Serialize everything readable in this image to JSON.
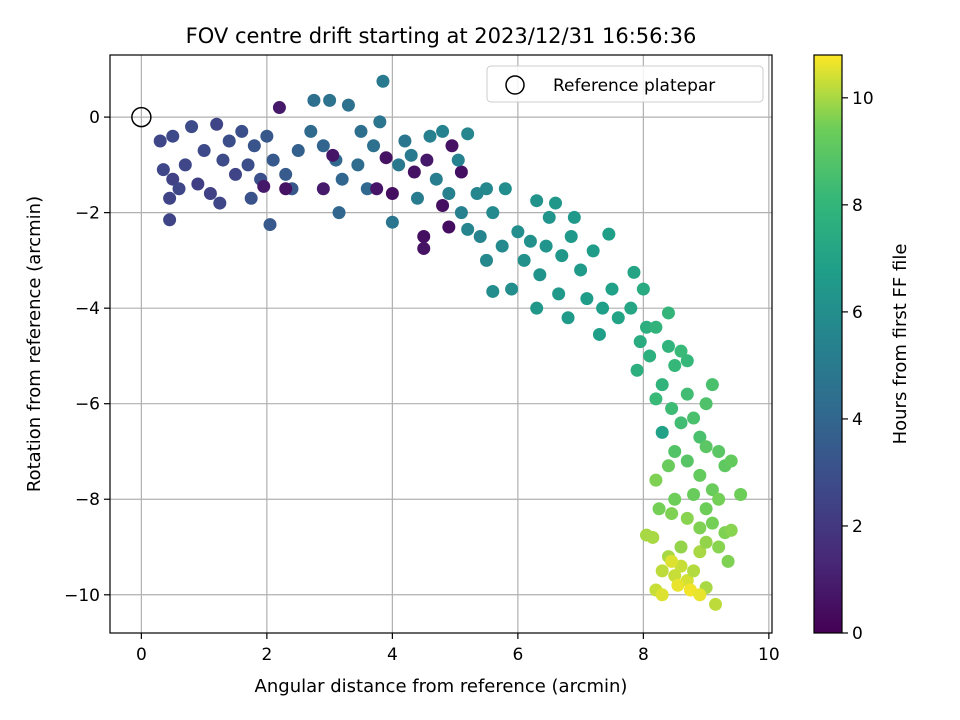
{
  "chart_data": {
    "type": "scatter",
    "title": "FOV centre drift starting at 2023/12/31 16:56:36",
    "xlabel": "Angular distance from reference (arcmin)",
    "ylabel": "Rotation from reference (arcmin)",
    "xlim": [
      -0.5,
      10.05
    ],
    "ylim": [
      -10.8,
      1.3
    ],
    "xticks": [
      0,
      2,
      4,
      6,
      8,
      10
    ],
    "yticks": [
      0,
      -2,
      -4,
      -6,
      -8,
      -10
    ],
    "xtick_labels": [
      "0",
      "2",
      "4",
      "6",
      "8",
      "10"
    ],
    "ytick_labels": [
      "0",
      "−2",
      "−4",
      "−6",
      "−8",
      "−10"
    ],
    "grid": true,
    "colormap": "viridis",
    "colorbar": {
      "label": "Hours from first FF file",
      "range": [
        0,
        10.8
      ],
      "ticks": [
        0,
        2,
        4,
        6,
        8,
        10
      ],
      "tick_labels": [
        "0",
        "2",
        "4",
        "6",
        "8",
        "10"
      ]
    },
    "legend": {
      "placement": "top-right",
      "entries": [
        {
          "label": "Reference platepar",
          "marker": "open-circle"
        }
      ]
    },
    "reference_point": {
      "x": 0,
      "y": 0
    },
    "series": [
      {
        "color_by": "hours",
        "points": [
          {
            "x": 0.3,
            "y": -0.5,
            "c": 2.6
          },
          {
            "x": 0.5,
            "y": -0.4,
            "c": 2.7
          },
          {
            "x": 0.8,
            "y": -0.2,
            "c": 2.8
          },
          {
            "x": 1.2,
            "y": -0.15,
            "c": 2.5
          },
          {
            "x": 0.35,
            "y": -1.1,
            "c": 2.6
          },
          {
            "x": 0.5,
            "y": -1.3,
            "c": 2.4
          },
          {
            "x": 0.7,
            "y": -1.0,
            "c": 2.6
          },
          {
            "x": 0.9,
            "y": -1.4,
            "c": 2.3
          },
          {
            "x": 0.45,
            "y": -1.7,
            "c": 2.5
          },
          {
            "x": 0.6,
            "y": -1.5,
            "c": 2.6
          },
          {
            "x": 1.0,
            "y": -0.7,
            "c": 2.7
          },
          {
            "x": 1.1,
            "y": -1.6,
            "c": 2.4
          },
          {
            "x": 1.3,
            "y": -0.9,
            "c": 2.8
          },
          {
            "x": 1.5,
            "y": -1.2,
            "c": 2.5
          },
          {
            "x": 0.45,
            "y": -2.15,
            "c": 2.5
          },
          {
            "x": 1.25,
            "y": -1.8,
            "c": 2.6
          },
          {
            "x": 1.4,
            "y": -0.5,
            "c": 2.9
          },
          {
            "x": 1.6,
            "y": -0.3,
            "c": 3.0
          },
          {
            "x": 1.8,
            "y": -0.6,
            "c": 3.2
          },
          {
            "x": 2.0,
            "y": -0.4,
            "c": 3.3
          },
          {
            "x": 1.7,
            "y": -1.0,
            "c": 2.9
          },
          {
            "x": 1.9,
            "y": -1.3,
            "c": 3.0
          },
          {
            "x": 2.1,
            "y": -0.9,
            "c": 3.4
          },
          {
            "x": 2.3,
            "y": -1.2,
            "c": 3.5
          },
          {
            "x": 2.2,
            "y": 0.2,
            "c": 0.8
          },
          {
            "x": 2.05,
            "y": -2.25,
            "c": 3.4
          },
          {
            "x": 1.75,
            "y": -1.7,
            "c": 3.1
          },
          {
            "x": 2.4,
            "y": -1.5,
            "c": 3.3
          },
          {
            "x": 2.5,
            "y": -0.7,
            "c": 3.7
          },
          {
            "x": 2.7,
            "y": -0.3,
            "c": 4.2
          },
          {
            "x": 2.75,
            "y": 0.35,
            "c": 4.4
          },
          {
            "x": 2.9,
            "y": -0.6,
            "c": 3.9
          },
          {
            "x": 3.0,
            "y": 0.35,
            "c": 4.6
          },
          {
            "x": 3.1,
            "y": -0.9,
            "c": 4.1
          },
          {
            "x": 3.3,
            "y": 0.25,
            "c": 4.5
          },
          {
            "x": 3.5,
            "y": -0.3,
            "c": 4.4
          },
          {
            "x": 3.2,
            "y": -1.3,
            "c": 4.0
          },
          {
            "x": 3.45,
            "y": -1.0,
            "c": 4.3
          },
          {
            "x": 3.7,
            "y": -0.6,
            "c": 4.5
          },
          {
            "x": 3.85,
            "y": 0.75,
            "c": 5.0
          },
          {
            "x": 3.8,
            "y": -0.1,
            "c": 4.7
          },
          {
            "x": 3.6,
            "y": -1.5,
            "c": 4.1
          },
          {
            "x": 3.15,
            "y": -2.0,
            "c": 4.0
          },
          {
            "x": 2.9,
            "y": -1.5,
            "c": 0.9
          },
          {
            "x": 2.3,
            "y": -1.5,
            "c": 0.6
          },
          {
            "x": 1.95,
            "y": -1.45,
            "c": 0.8
          },
          {
            "x": 3.05,
            "y": -0.8,
            "c": 0.7
          },
          {
            "x": 3.9,
            "y": -0.85,
            "c": 0.6
          },
          {
            "x": 4.0,
            "y": -1.6,
            "c": 0.5
          },
          {
            "x": 3.75,
            "y": -1.5,
            "c": 0.7
          },
          {
            "x": 4.35,
            "y": -1.15,
            "c": 0.6
          },
          {
            "x": 4.55,
            "y": -0.9,
            "c": 0.8
          },
          {
            "x": 4.5,
            "y": -2.5,
            "c": 0.5
          },
          {
            "x": 4.5,
            "y": -2.75,
            "c": 0.6
          },
          {
            "x": 4.9,
            "y": -2.3,
            "c": 0.4
          },
          {
            "x": 4.8,
            "y": -1.85,
            "c": 0.5
          },
          {
            "x": 4.95,
            "y": -0.6,
            "c": 0.6
          },
          {
            "x": 5.1,
            "y": -1.15,
            "c": 0.5
          },
          {
            "x": 4.0,
            "y": -2.2,
            "c": 4.8
          },
          {
            "x": 4.1,
            "y": -1.0,
            "c": 4.9
          },
          {
            "x": 4.2,
            "y": -0.5,
            "c": 4.8
          },
          {
            "x": 4.3,
            "y": -0.8,
            "c": 5.0
          },
          {
            "x": 4.4,
            "y": -1.7,
            "c": 5.1
          },
          {
            "x": 4.6,
            "y": -0.4,
            "c": 5.3
          },
          {
            "x": 4.7,
            "y": -1.3,
            "c": 5.2
          },
          {
            "x": 4.8,
            "y": -0.3,
            "c": 5.4
          },
          {
            "x": 4.9,
            "y": -1.6,
            "c": 5.3
          },
          {
            "x": 5.05,
            "y": -0.9,
            "c": 5.4
          },
          {
            "x": 5.2,
            "y": -0.35,
            "c": 5.6
          },
          {
            "x": 5.1,
            "y": -2.0,
            "c": 5.3
          },
          {
            "x": 5.2,
            "y": -2.35,
            "c": 5.5
          },
          {
            "x": 5.35,
            "y": -1.6,
            "c": 5.6
          },
          {
            "x": 5.4,
            "y": -2.5,
            "c": 5.5
          },
          {
            "x": 5.5,
            "y": -1.5,
            "c": 5.7
          },
          {
            "x": 5.6,
            "y": -2.0,
            "c": 5.8
          },
          {
            "x": 5.5,
            "y": -3.0,
            "c": 5.7
          },
          {
            "x": 5.6,
            "y": -3.65,
            "c": 5.9
          },
          {
            "x": 5.75,
            "y": -2.7,
            "c": 5.8
          },
          {
            "x": 5.8,
            "y": -1.5,
            "c": 5.9
          },
          {
            "x": 5.9,
            "y": -3.6,
            "c": 6.0
          },
          {
            "x": 6.0,
            "y": -2.4,
            "c": 6.0
          },
          {
            "x": 6.1,
            "y": -3.0,
            "c": 6.1
          },
          {
            "x": 6.2,
            "y": -2.6,
            "c": 6.1
          },
          {
            "x": 6.3,
            "y": -1.75,
            "c": 6.2
          },
          {
            "x": 6.35,
            "y": -3.3,
            "c": 6.2
          },
          {
            "x": 6.5,
            "y": -2.1,
            "c": 6.3
          },
          {
            "x": 6.6,
            "y": -1.8,
            "c": 6.4
          },
          {
            "x": 6.45,
            "y": -2.7,
            "c": 6.3
          },
          {
            "x": 6.7,
            "y": -2.9,
            "c": 6.4
          },
          {
            "x": 6.3,
            "y": -4.0,
            "c": 6.4
          },
          {
            "x": 6.65,
            "y": -3.7,
            "c": 6.5
          },
          {
            "x": 6.85,
            "y": -2.5,
            "c": 6.5
          },
          {
            "x": 6.9,
            "y": -2.1,
            "c": 6.5
          },
          {
            "x": 7.0,
            "y": -3.2,
            "c": 6.6
          },
          {
            "x": 6.8,
            "y": -4.2,
            "c": 6.6
          },
          {
            "x": 7.1,
            "y": -3.8,
            "c": 6.7
          },
          {
            "x": 7.2,
            "y": -2.8,
            "c": 6.7
          },
          {
            "x": 7.35,
            "y": -4.0,
            "c": 6.8
          },
          {
            "x": 7.3,
            "y": -4.55,
            "c": 6.8
          },
          {
            "x": 7.5,
            "y": -3.6,
            "c": 6.9
          },
          {
            "x": 7.45,
            "y": -2.45,
            "c": 6.8
          },
          {
            "x": 7.6,
            "y": -4.2,
            "c": 7.0
          },
          {
            "x": 7.8,
            "y": -4.0,
            "c": 7.2
          },
          {
            "x": 7.85,
            "y": -3.25,
            "c": 7.1
          },
          {
            "x": 8.0,
            "y": -3.6,
            "c": 7.4
          },
          {
            "x": 7.95,
            "y": -4.7,
            "c": 7.5
          },
          {
            "x": 8.05,
            "y": -4.4,
            "c": 7.6
          },
          {
            "x": 7.9,
            "y": -5.3,
            "c": 7.6
          },
          {
            "x": 8.1,
            "y": -5.0,
            "c": 7.7
          },
          {
            "x": 8.2,
            "y": -4.4,
            "c": 7.9
          },
          {
            "x": 8.4,
            "y": -4.8,
            "c": 7.9
          },
          {
            "x": 8.4,
            "y": -4.1,
            "c": 8.0
          },
          {
            "x": 8.3,
            "y": -5.6,
            "c": 7.9
          },
          {
            "x": 8.5,
            "y": -5.2,
            "c": 8.1
          },
          {
            "x": 8.6,
            "y": -4.9,
            "c": 8.2
          },
          {
            "x": 8.7,
            "y": -5.1,
            "c": 8.1
          },
          {
            "x": 8.2,
            "y": -5.9,
            "c": 8.2
          },
          {
            "x": 8.45,
            "y": -6.1,
            "c": 8.3
          },
          {
            "x": 8.7,
            "y": -5.8,
            "c": 8.4
          },
          {
            "x": 8.6,
            "y": -6.4,
            "c": 8.4
          },
          {
            "x": 8.8,
            "y": -6.3,
            "c": 8.6
          },
          {
            "x": 9.1,
            "y": -5.6,
            "c": 8.6
          },
          {
            "x": 9.0,
            "y": -6.0,
            "c": 8.7
          },
          {
            "x": 8.9,
            "y": -6.7,
            "c": 8.6
          },
          {
            "x": 8.3,
            "y": -6.6,
            "c": 6.9
          },
          {
            "x": 8.5,
            "y": -7.0,
            "c": 8.8
          },
          {
            "x": 8.7,
            "y": -7.2,
            "c": 8.9
          },
          {
            "x": 9.0,
            "y": -6.9,
            "c": 9.0
          },
          {
            "x": 9.2,
            "y": -7.0,
            "c": 9.0
          },
          {
            "x": 8.9,
            "y": -7.5,
            "c": 9.2
          },
          {
            "x": 9.1,
            "y": -7.8,
            "c": 9.3
          },
          {
            "x": 9.3,
            "y": -7.3,
            "c": 9.1
          },
          {
            "x": 9.4,
            "y": -7.2,
            "c": 9.2
          },
          {
            "x": 8.8,
            "y": -7.9,
            "c": 9.3
          },
          {
            "x": 9.0,
            "y": -8.2,
            "c": 9.4
          },
          {
            "x": 9.2,
            "y": -8.0,
            "c": 9.5
          },
          {
            "x": 9.55,
            "y": -7.9,
            "c": 9.4
          },
          {
            "x": 8.4,
            "y": -7.3,
            "c": 9.3
          },
          {
            "x": 8.2,
            "y": -7.6,
            "c": 9.6
          },
          {
            "x": 8.5,
            "y": -8.0,
            "c": 9.4
          },
          {
            "x": 8.7,
            "y": -8.4,
            "c": 9.7
          },
          {
            "x": 8.45,
            "y": -8.3,
            "c": 9.6
          },
          {
            "x": 8.25,
            "y": -8.2,
            "c": 9.5
          },
          {
            "x": 8.9,
            "y": -8.6,
            "c": 9.6
          },
          {
            "x": 9.1,
            "y": -8.5,
            "c": 9.5
          },
          {
            "x": 9.3,
            "y": -8.7,
            "c": 9.6
          },
          {
            "x": 9.4,
            "y": -8.65,
            "c": 9.7
          },
          {
            "x": 8.6,
            "y": -9.0,
            "c": 9.8
          },
          {
            "x": 8.4,
            "y": -9.2,
            "c": 10.0
          },
          {
            "x": 8.3,
            "y": -9.5,
            "c": 10.2
          },
          {
            "x": 8.5,
            "y": -9.6,
            "c": 10.3
          },
          {
            "x": 8.7,
            "y": -9.7,
            "c": 10.4
          },
          {
            "x": 8.6,
            "y": -9.4,
            "c": 10.3
          },
          {
            "x": 8.8,
            "y": -9.5,
            "c": 10.1
          },
          {
            "x": 8.9,
            "y": -9.1,
            "c": 10.0
          },
          {
            "x": 9.0,
            "y": -8.9,
            "c": 9.8
          },
          {
            "x": 9.2,
            "y": -9.0,
            "c": 9.7
          },
          {
            "x": 9.35,
            "y": -9.3,
            "c": 9.6
          },
          {
            "x": 9.0,
            "y": -9.85,
            "c": 10.0
          },
          {
            "x": 8.2,
            "y": -9.9,
            "c": 10.3
          },
          {
            "x": 8.3,
            "y": -10.0,
            "c": 10.5
          },
          {
            "x": 8.55,
            "y": -9.8,
            "c": 10.6
          },
          {
            "x": 8.75,
            "y": -9.9,
            "c": 10.7
          },
          {
            "x": 9.15,
            "y": -10.2,
            "c": 10.2
          },
          {
            "x": 8.15,
            "y": -8.8,
            "c": 10.0
          },
          {
            "x": 8.05,
            "y": -8.75,
            "c": 10.0
          },
          {
            "x": 8.9,
            "y": -10.0,
            "c": 10.6
          },
          {
            "x": 8.45,
            "y": -9.3,
            "c": 10.5
          }
        ]
      }
    ]
  }
}
